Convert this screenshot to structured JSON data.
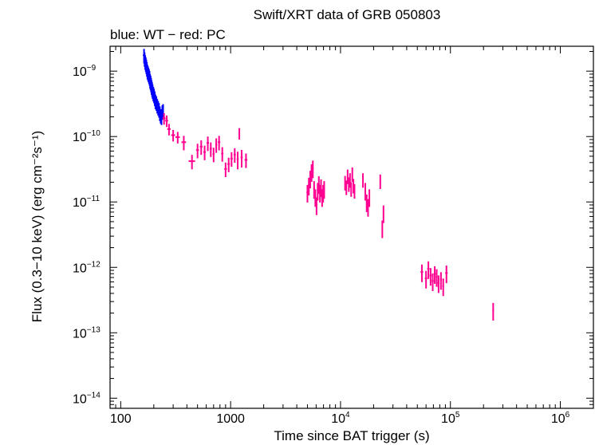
{
  "chart_data": {
    "type": "scatter",
    "title": "Swift/XRT data of GRB 050803",
    "subtitle": "blue: WT − red: PC",
    "xlabel": "Time since BAT trigger (s)",
    "ylabel": "Flux (0.3−10 keV) (erg cm⁻²s⁻¹)",
    "x_scale": "log",
    "y_scale": "log",
    "xlim": [
      80,
      2000000
    ],
    "ylim": [
      7e-15,
      2.4e-09
    ],
    "x_ticks": [
      {
        "value": 100,
        "label": "100"
      },
      {
        "value": 1000,
        "label": "1000"
      },
      {
        "value": 10000,
        "base": "10",
        "exp": "4"
      },
      {
        "value": 100000,
        "base": "10",
        "exp": "5"
      },
      {
        "value": 1000000,
        "base": "10",
        "exp": "6"
      }
    ],
    "y_ticks": [
      {
        "value": 1e-09,
        "base": "10",
        "exp": "−9"
      },
      {
        "value": 1e-10,
        "base": "10",
        "exp": "−10"
      },
      {
        "value": 1e-11,
        "base": "10",
        "exp": "−11"
      },
      {
        "value": 1e-12,
        "base": "10",
        "exp": "−12"
      },
      {
        "value": 1e-13,
        "base": "10",
        "exp": "−13"
      },
      {
        "value": 1e-14,
        "base": "10",
        "exp": "−14"
      }
    ],
    "series": [
      {
        "mode": "WT",
        "color": "#0000ff",
        "points": [
          [
            163,
            1.75e-09,
            4,
            0.25
          ],
          [
            165,
            1.55e-09,
            4,
            0.25
          ],
          [
            167,
            1.4e-09,
            4,
            0.25
          ],
          [
            169,
            1.3e-09,
            4,
            0.25
          ],
          [
            171,
            1.2e-09,
            4,
            0.25
          ],
          [
            173,
            1.1e-09,
            4,
            0.25
          ],
          [
            175,
            1e-09,
            4,
            0.25
          ],
          [
            177,
            9.5e-10,
            4,
            0.25
          ],
          [
            179,
            9e-10,
            4,
            0.25
          ],
          [
            181,
            8.5e-10,
            4,
            0.25
          ],
          [
            183,
            8e-10,
            4,
            0.25
          ],
          [
            185,
            7.2e-10,
            4,
            0.25
          ],
          [
            187,
            6.8e-10,
            4,
            0.25
          ],
          [
            189,
            6.3e-10,
            4,
            0.25
          ],
          [
            191,
            5.8e-10,
            4,
            0.25
          ],
          [
            193,
            5.4e-10,
            4,
            0.25
          ],
          [
            195,
            5e-10,
            4,
            0.25
          ],
          [
            198,
            4.6e-10,
            4,
            0.25
          ],
          [
            201,
            4.3e-10,
            4,
            0.25
          ],
          [
            204,
            3.9e-10,
            4,
            0.25
          ],
          [
            207,
            3.5e-10,
            4,
            0.25
          ],
          [
            211,
            3.3e-10,
            4,
            0.25
          ],
          [
            215,
            3e-10,
            4,
            0.25
          ],
          [
            219,
            2.8e-10,
            4,
            0.25
          ],
          [
            223,
            2.6e-10,
            4,
            0.25
          ],
          [
            227,
            2.3e-10,
            4,
            0.25
          ],
          [
            231,
            2.1e-10,
            4,
            0.25
          ],
          [
            235,
            2e-10,
            4,
            0.25
          ],
          [
            239,
            2.4e-10,
            4,
            0.25
          ],
          [
            243,
            2.5e-10,
            4,
            0.25
          ]
        ]
      },
      {
        "mode": "PC",
        "color": "#ff0090",
        "points": [
          [
            248,
            1.9e-10,
            8,
            0.2
          ],
          [
            262,
            1.75e-10,
            8,
            0.2
          ],
          [
            275,
            1.3e-10,
            10,
            0.2
          ],
          [
            300,
            1.05e-10,
            12,
            0.2
          ],
          [
            330,
            9.8e-11,
            15,
            0.2
          ],
          [
            375,
            8.2e-11,
            18,
            0.25
          ],
          [
            445,
            4.2e-11,
            30,
            0.25
          ],
          [
            500,
            6.2e-11,
            15,
            0.25
          ],
          [
            540,
            7e-11,
            15,
            0.25
          ],
          [
            580,
            5.8e-11,
            15,
            0.25
          ],
          [
            620,
            8e-11,
            15,
            0.25
          ],
          [
            660,
            6.5e-11,
            15,
            0.25
          ],
          [
            700,
            5.4e-11,
            15,
            0.25
          ],
          [
            740,
            7.5e-11,
            15,
            0.25
          ],
          [
            785,
            8.2e-11,
            20,
            0.25
          ],
          [
            840,
            5.5e-11,
            20,
            0.25
          ],
          [
            900,
            3.2e-11,
            25,
            0.25
          ],
          [
            960,
            3.8e-11,
            25,
            0.25
          ],
          [
            1020,
            4.6e-11,
            25,
            0.25
          ],
          [
            1090,
            5.3e-11,
            25,
            0.25
          ],
          [
            1160,
            4.5e-11,
            25,
            0.3
          ],
          [
            1200,
            1.12e-10,
            20,
            0.2
          ],
          [
            1260,
            4.8e-11,
            30,
            0.3
          ],
          [
            1380,
            4.4e-11,
            40,
            0.25
          ],
          [
            5000,
            1.4e-11,
            100,
            0.3
          ],
          [
            5150,
            1.8e-11,
            100,
            0.3
          ],
          [
            5300,
            2.3e-11,
            100,
            0.3
          ],
          [
            5450,
            2.9e-11,
            100,
            0.3
          ],
          [
            5600,
            3.3e-11,
            100,
            0.3
          ],
          [
            5750,
            1.6e-11,
            100,
            0.3
          ],
          [
            5900,
            1.2e-11,
            100,
            0.3
          ],
          [
            6050,
            9e-12,
            100,
            0.3
          ],
          [
            6200,
            1.5e-11,
            100,
            0.3
          ],
          [
            6350,
            1.9e-11,
            100,
            0.3
          ],
          [
            6500,
            1.4e-11,
            100,
            0.3
          ],
          [
            6650,
            1.7e-11,
            100,
            0.3
          ],
          [
            6800,
            1.2e-11,
            100,
            0.3
          ],
          [
            6950,
            1.4e-11,
            100,
            0.3
          ],
          [
            7100,
            1.6e-11,
            100,
            0.3
          ],
          [
            11000,
            2e-11,
            150,
            0.25
          ],
          [
            11300,
            1.7e-11,
            150,
            0.25
          ],
          [
            11600,
            2.5e-11,
            150,
            0.25
          ],
          [
            11900,
            1.9e-11,
            150,
            0.25
          ],
          [
            12200,
            2.2e-11,
            150,
            0.25
          ],
          [
            12500,
            1.6e-11,
            150,
            0.25
          ],
          [
            12800,
            2.7e-11,
            150,
            0.25
          ],
          [
            13100,
            1.8e-11,
            150,
            0.25
          ],
          [
            13400,
            1.5e-11,
            150,
            0.25
          ],
          [
            16000,
            2.2e-11,
            200,
            0.25
          ],
          [
            16800,
            1.5e-11,
            200,
            0.3
          ],
          [
            17300,
            1e-11,
            200,
            0.3
          ],
          [
            17800,
            8.5e-12,
            200,
            0.3
          ],
          [
            18300,
            1.2e-11,
            200,
            0.3
          ],
          [
            23000,
            2.1e-11,
            300,
            0.25
          ],
          [
            24000,
            4e-12,
            300,
            0.3
          ],
          [
            24600,
            6.8e-12,
            300,
            0.3
          ],
          [
            55000,
            8.5e-13,
            1500,
            0.3
          ],
          [
            60000,
            6.8e-13,
            1500,
            0.3
          ],
          [
            63000,
            9.5e-13,
            1500,
            0.3
          ],
          [
            66000,
            7.5e-13,
            1500,
            0.3
          ],
          [
            69000,
            6.2e-13,
            1500,
            0.3
          ],
          [
            72000,
            8e-13,
            1500,
            0.3
          ],
          [
            75000,
            7.2e-13,
            1500,
            0.3
          ],
          [
            78000,
            5.8e-13,
            1500,
            0.3
          ],
          [
            82000,
            6.5e-13,
            1500,
            0.3
          ],
          [
            86000,
            5.2e-13,
            1500,
            0.3
          ],
          [
            92000,
            8.2e-13,
            2500,
            0.3
          ],
          [
            245000,
            2.2e-13,
            4000,
            0.3
          ]
        ]
      }
    ]
  }
}
